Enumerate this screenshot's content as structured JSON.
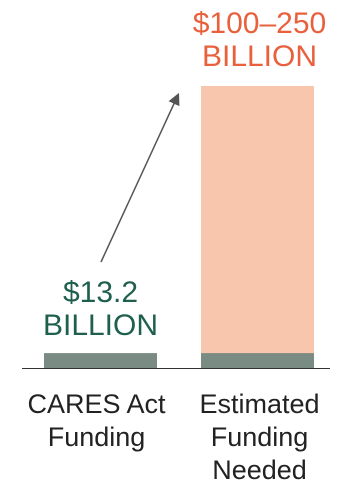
{
  "chart_data": {
    "type": "bar",
    "title": "",
    "xlabel": "",
    "ylabel": "",
    "categories": [
      "CARES Act Funding",
      "Estimated Funding Needed"
    ],
    "category_lines": [
      [
        "CARES Act",
        "Funding"
      ],
      [
        "Estimated",
        "Funding",
        "Needed"
      ]
    ],
    "values": [
      13.2,
      250
    ],
    "range_low": [
      13.2,
      100
    ],
    "unit": "billion USD",
    "value_labels": [
      {
        "lines": [
          "$13.2",
          "BILLION"
        ],
        "color": "#1f5f4d"
      },
      {
        "lines": [
          "$100–250",
          "BILLION"
        ],
        "color": "#e8603c"
      }
    ],
    "annotations": [
      "arrow from CARES Act Funding bar to Estimated Funding Needed bar"
    ],
    "grid": false,
    "legend": "none",
    "colors": {
      "baseline_bar": "#7a8b83",
      "range_bar": "#f7c6ad",
      "axis": "#333333",
      "arrow": "#555555",
      "category_text": "#222222"
    }
  }
}
